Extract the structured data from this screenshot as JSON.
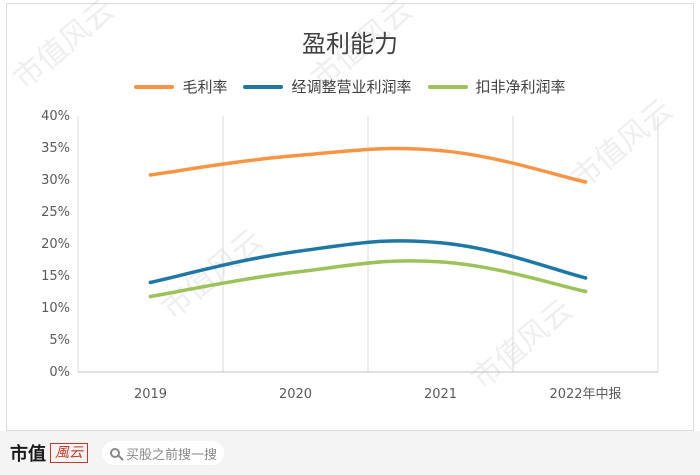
{
  "chart_data": {
    "type": "line",
    "title": "盈利能力",
    "categories": [
      "2019",
      "2020",
      "2021",
      "2022年中报"
    ],
    "y_ticks": [
      "0%",
      "5%",
      "10%",
      "15%",
      "20%",
      "25%",
      "30%",
      "35%",
      "40%"
    ],
    "ylim": [
      0,
      40
    ],
    "grid": "vertical",
    "legend_position": "top",
    "series": [
      {
        "name": "毛利率",
        "color": "#F79545",
        "values": [
          30.8,
          33.8,
          34.6,
          29.7
        ]
      },
      {
        "name": "经调整营业利润率",
        "color": "#1F78A4",
        "values": [
          14.0,
          18.8,
          20.2,
          14.7
        ]
      },
      {
        "name": "扣非净利润率",
        "color": "#9DC25A",
        "values": [
          11.8,
          15.6,
          17.2,
          12.6
        ]
      }
    ]
  },
  "watermark": "市值风云",
  "footer": {
    "logo_text": "市值",
    "logo_mark": "風云",
    "search_placeholder": "买股之前搜一搜"
  }
}
